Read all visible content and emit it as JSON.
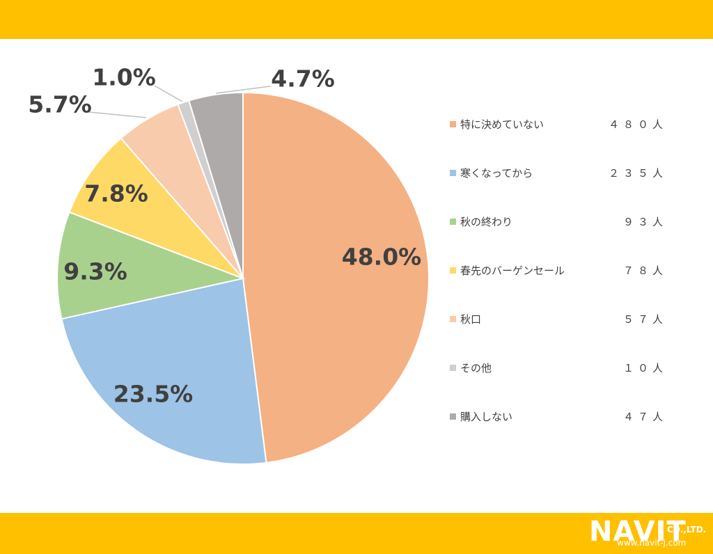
{
  "chart_data": {
    "type": "pie",
    "title": "",
    "slices": [
      {
        "label": "特に決めていない",
        "count": "４８０人",
        "value": 48.0,
        "pct_label": "48.0%",
        "color": "#F4B183"
      },
      {
        "label": "寒くなってから",
        "count": "２３５人",
        "value": 23.5,
        "pct_label": "23.5%",
        "color": "#9DC3E6"
      },
      {
        "label": "秋の終わり",
        "count": "９３人",
        "value": 9.3,
        "pct_label": "9.3%",
        "color": "#A9D18E"
      },
      {
        "label": "春先のバーゲンセール",
        "count": "７８人",
        "value": 7.8,
        "pct_label": "7.8%",
        "color": "#FFD966"
      },
      {
        "label": "秋口",
        "count": "５７人",
        "value": 5.7,
        "pct_label": "5.7%",
        "color": "#F8CBAD"
      },
      {
        "label": "その他",
        "count": "１０人",
        "value": 1.0,
        "pct_label": "1.0%",
        "color": "#D0CECE"
      },
      {
        "label": "購入しない",
        "count": "４７人",
        "value": 4.7,
        "pct_label": "4.7%",
        "color": "#AEAAAA"
      }
    ],
    "legend_position": "right"
  },
  "brand": {
    "name": "NAVIT",
    "suffix": "CO.,LTD.",
    "url": "www.navit-j.com",
    "band_color": "#FFC000"
  }
}
